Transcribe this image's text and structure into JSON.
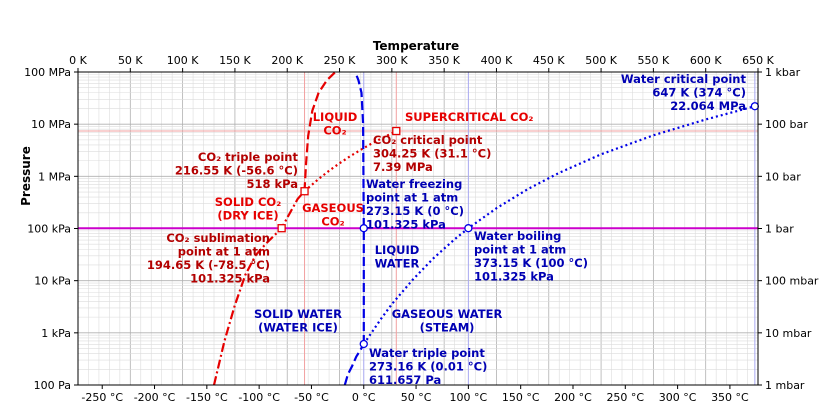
{
  "chart_data": {
    "type": "line",
    "title": "",
    "xlabel_top": "Temperature",
    "ylabel_left": "Pressure",
    "x_top_range_K": [
      0,
      650
    ],
    "x_bottom_range_C": [
      -273.15,
      376.85
    ],
    "y_range_Pa_log10": [
      2,
      8
    ],
    "grid": true,
    "log_y": true,
    "top_ticks": [
      "0 K",
      "50 K",
      "100 K",
      "150 K",
      "200 K",
      "250 K",
      "300 K",
      "350 K",
      "400 K",
      "450 K",
      "500 K",
      "550 K",
      "600 K",
      "650 K"
    ],
    "bottom_ticks": [
      "-250 °C",
      "-200 °C",
      "-150 °C",
      "-100 °C",
      "-50 °C",
      "0 °C",
      "50 °C",
      "100 °C",
      "150 °C",
      "200 °C",
      "250 °C",
      "300 °C",
      "350 °C"
    ],
    "left_ticks": [
      "100 Pa",
      "1 kPa",
      "10 kPa",
      "100 kPa",
      "1 MPa",
      "10 MPa",
      "100 MPa"
    ],
    "right_ticks": [
      "1 mbar",
      "10 mbar",
      "100 mbar",
      "1 bar",
      "10 bar",
      "100 bar",
      "1 kbar"
    ],
    "reference_line": {
      "pressure_Pa": 101325
    },
    "series": [
      {
        "id": "co2_sublimation",
        "style": "dash-dot",
        "color": "#e60000",
        "points_K_Pa": [
          [
            130,
            100
          ],
          [
            140,
            700
          ],
          [
            150,
            3400
          ],
          [
            160,
            13000
          ],
          [
            170,
            31000
          ],
          [
            180,
            52000
          ],
          [
            194.65,
            101325
          ],
          [
            200,
            160000
          ],
          [
            210,
            370000
          ],
          [
            216.55,
            518000
          ]
        ]
      },
      {
        "id": "co2_melting",
        "style": "dashed",
        "color": "#e60000",
        "points_K_Pa": [
          [
            216.55,
            518000
          ],
          [
            218,
            1800000
          ],
          [
            220,
            6000000
          ],
          [
            224,
            18000000
          ],
          [
            230,
            40000000
          ],
          [
            238,
            70000000
          ],
          [
            246,
            100000000
          ]
        ]
      },
      {
        "id": "co2_vaporization",
        "style": "dotted",
        "color": "#e60000",
        "points_K_Pa": [
          [
            216.55,
            518000
          ],
          [
            230,
            890000
          ],
          [
            240,
            1280000
          ],
          [
            250,
            1780000
          ],
          [
            260,
            2420000
          ],
          [
            270,
            3200000
          ],
          [
            280,
            4160000
          ],
          [
            290,
            5320000
          ],
          [
            304.25,
            7390000
          ]
        ]
      },
      {
        "id": "water_sublimation",
        "style": "dashed",
        "color": "#0000e6",
        "points_K_Pa": [
          [
            255,
            100
          ],
          [
            258,
            160
          ],
          [
            262,
            230
          ],
          [
            266,
            350
          ],
          [
            270,
            470
          ],
          [
            273.16,
            611.657
          ]
        ]
      },
      {
        "id": "water_melting",
        "style": "dashed",
        "color": "#0000e6",
        "points_K_Pa": [
          [
            273.16,
            611.657
          ],
          [
            273.15,
            101325
          ],
          [
            272.5,
            10000000
          ],
          [
            271,
            40000000
          ],
          [
            268,
            70000000
          ],
          [
            265,
            100000000
          ]
        ]
      },
      {
        "id": "water_vaporization",
        "style": "dotted",
        "color": "#0000e6",
        "points_K_Pa": [
          [
            273.16,
            611.657
          ],
          [
            290,
            1900
          ],
          [
            300,
            3540
          ],
          [
            320,
            10500
          ],
          [
            340,
            27200
          ],
          [
            360,
            62200
          ],
          [
            373.15,
            101325
          ],
          [
            400,
            245000
          ],
          [
            430,
            568000
          ],
          [
            460,
            1170000
          ],
          [
            500,
            2640000
          ],
          [
            550,
            6120000
          ],
          [
            600,
            12300000
          ],
          [
            647,
            22064000
          ]
        ]
      }
    ],
    "points": [
      {
        "id": "co2_triple",
        "K": 216.55,
        "Pa": 518000,
        "marker": "square",
        "color": "#e60000"
      },
      {
        "id": "co2_critical",
        "K": 304.25,
        "Pa": 7390000,
        "marker": "square",
        "color": "#e60000"
      },
      {
        "id": "co2_sublimation_1atm",
        "K": 194.65,
        "Pa": 101325,
        "marker": "square",
        "color": "#e60000"
      },
      {
        "id": "water_triple",
        "K": 273.16,
        "Pa": 611.657,
        "marker": "circle",
        "color": "#0000e6"
      },
      {
        "id": "water_freezing",
        "K": 273.15,
        "Pa": 101325,
        "marker": "circle",
        "color": "#0000e6"
      },
      {
        "id": "water_boiling",
        "K": 373.15,
        "Pa": 101325,
        "marker": "circle",
        "color": "#0000e6"
      },
      {
        "id": "water_critical",
        "K": 647,
        "Pa": 22064000,
        "marker": "circle",
        "color": "#0000e6"
      }
    ],
    "guide_lines": [
      {
        "id": "co2_triple_v",
        "K": 216.55,
        "color": "#e60000"
      },
      {
        "id": "co2_critical_v",
        "K": 304.25,
        "color": "#e60000"
      },
      {
        "id": "co2_critical_h",
        "Pa": 7390000,
        "color": "#e60000"
      },
      {
        "id": "water_freezing_v",
        "K": 273.15,
        "color": "#0000e6"
      },
      {
        "id": "water_boiling_v",
        "K": 373.15,
        "color": "#0000e6"
      },
      {
        "id": "water_critical_v",
        "K": 647,
        "color": "#0000e6"
      }
    ],
    "annotations": [
      {
        "id": "supercritical-co2",
        "cls": "bright-red",
        "anchor": "start",
        "lines": [
          "SUPERCRITICAL CO₂"
        ]
      },
      {
        "id": "liquid-co2",
        "cls": "bright-red",
        "anchor": "middle",
        "lines": [
          "LIQUID",
          "CO₂"
        ]
      },
      {
        "id": "co2-triple-point",
        "cls": "red",
        "anchor": "end",
        "lines": [
          "CO₂ triple point",
          "216.55 K (-56.6 °C)",
          "518 kPa"
        ]
      },
      {
        "id": "co2-critical-point",
        "cls": "red",
        "anchor": "start",
        "lines": [
          "CO₂ critical point",
          "304.25 K (31.1 °C)",
          "7.39 MPa"
        ]
      },
      {
        "id": "solid-co2",
        "cls": "bright-red",
        "anchor": "middle",
        "lines": [
          "SOLID CO₂",
          "(DRY ICE)"
        ]
      },
      {
        "id": "gaseous-co2",
        "cls": "bright-red",
        "anchor": "middle",
        "lines": [
          "GASEOUS",
          "CO₂"
        ]
      },
      {
        "id": "co2-sublimation",
        "cls": "red",
        "anchor": "end",
        "lines": [
          "CO₂ sublimation",
          "point at 1 atm",
          "194.65 K (-78.5 °C)",
          "101.325 kPa"
        ]
      },
      {
        "id": "water-critical-point",
        "cls": "blue",
        "anchor": "end",
        "lines": [
          "Water critical point",
          "647 K (374 °C)",
          "22.064 MPa"
        ]
      },
      {
        "id": "water-freezing-point",
        "cls": "blue",
        "anchor": "start",
        "lines": [
          "Water freezing",
          "point at 1 atm",
          "273.15 K (0 °C)",
          "101.325 kPa"
        ]
      },
      {
        "id": "liquid-water",
        "cls": "blue",
        "anchor": "middle",
        "lines": [
          "LIQUID",
          "WATER"
        ]
      },
      {
        "id": "water-boiling-point",
        "cls": "blue",
        "anchor": "start",
        "lines": [
          "Water boiling",
          "point at 1 atm",
          "373.15 K (100 °C)",
          "101.325 kPa"
        ]
      },
      {
        "id": "solid-water",
        "cls": "blue",
        "anchor": "middle",
        "lines": [
          "SOLID WATER",
          "(WATER ICE)"
        ]
      },
      {
        "id": "gaseous-water",
        "cls": "blue",
        "anchor": "middle",
        "lines": [
          "GASEOUS WATER",
          "(STEAM)"
        ]
      },
      {
        "id": "water-triple-point",
        "cls": "blue",
        "anchor": "start",
        "lines": [
          "Water triple point",
          "273.16 K (0.01 °C)",
          "611.657 Pa"
        ]
      }
    ]
  }
}
